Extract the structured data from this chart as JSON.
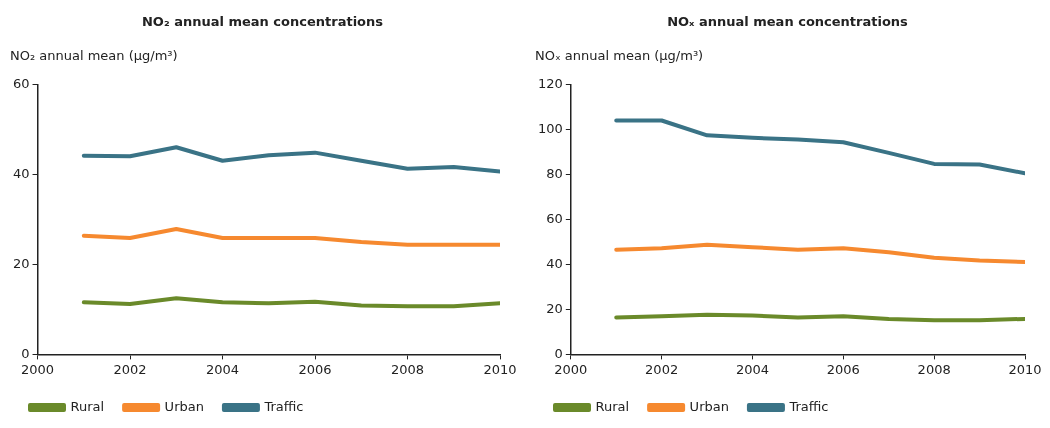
{
  "chart_data": [
    {
      "type": "line",
      "title": "NO₂ annual mean concentrations",
      "ylabel": "NO₂ annual mean (µg/m³)",
      "x": [
        2001,
        2002,
        2003,
        2004,
        2005,
        2006,
        2007,
        2008,
        2009,
        2010
      ],
      "xlim": [
        2000,
        2010
      ],
      "xticks": [
        2000,
        2002,
        2004,
        2006,
        2008,
        2010
      ],
      "ylim": [
        0,
        60
      ],
      "yticks": [
        0,
        20,
        40,
        60
      ],
      "grid": false,
      "legend": "bottom left",
      "marker": "none",
      "line_style": "solid",
      "series": [
        {
          "name": "Rural",
          "color": "#6a8a2a",
          "values": [
            11.6,
            11.2,
            12.5,
            11.6,
            11.4,
            11.7,
            10.9,
            10.7,
            10.7,
            11.4
          ]
        },
        {
          "name": "Urban",
          "color": "#f6892f",
          "values": [
            26.4,
            25.9,
            27.9,
            25.9,
            25.9,
            25.9,
            25.0,
            24.4,
            24.4,
            24.4
          ]
        },
        {
          "name": "Traffic",
          "color": "#3a7386",
          "values": [
            44.2,
            44.1,
            46.1,
            43.1,
            44.3,
            44.9,
            43.1,
            41.3,
            41.7,
            40.7
          ]
        }
      ]
    },
    {
      "type": "line",
      "title": "NOₓ annual mean concentrations",
      "ylabel": "NOₓ annual mean (µg/m³)",
      "x": [
        2001,
        2002,
        2003,
        2004,
        2005,
        2006,
        2007,
        2008,
        2009,
        2010
      ],
      "xlim": [
        2000,
        2010
      ],
      "xticks": [
        2000,
        2002,
        2004,
        2006,
        2008,
        2010
      ],
      "ylim": [
        0,
        120
      ],
      "yticks": [
        0,
        20,
        40,
        60,
        80,
        100,
        120
      ],
      "grid": false,
      "legend": "bottom left",
      "marker": "none",
      "line_style": "solid",
      "series": [
        {
          "name": "Rural",
          "color": "#6a8a2a",
          "values": [
            16.4,
            17.0,
            17.6,
            17.3,
            16.4,
            17.0,
            15.8,
            15.2,
            15.2,
            15.8
          ]
        },
        {
          "name": "Urban",
          "color": "#f6892f",
          "values": [
            46.6,
            47.2,
            48.8,
            47.7,
            46.6,
            47.2,
            45.5,
            43.0,
            41.8,
            41.1
          ]
        },
        {
          "name": "Traffic",
          "color": "#3a7386",
          "values": [
            104.1,
            104.1,
            97.5,
            96.4,
            95.6,
            94.4,
            89.7,
            84.8,
            84.5,
            80.6
          ]
        }
      ]
    }
  ]
}
